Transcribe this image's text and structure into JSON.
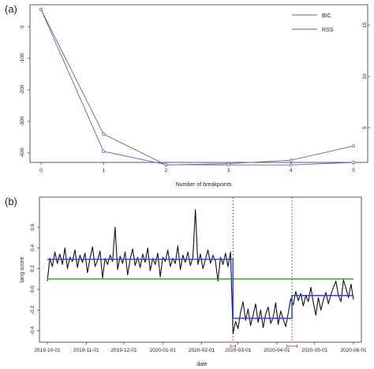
{
  "colors": {
    "bic": "#6a6a6a",
    "rss": "#4f5fd6",
    "series": "#111111",
    "fit": "#2f4fd0",
    "mean": "#2e9c2e",
    "ci": "#d9431f",
    "break": "#444444"
  },
  "chart_data": [
    {
      "type": "line",
      "panel_label": "(a)",
      "xlabel": "Number of breakpoints",
      "x": [
        0,
        1,
        2,
        3,
        4,
        5
      ],
      "x_ticks": [
        "0",
        "1",
        "2",
        "3",
        "4",
        "5"
      ],
      "xlim": [
        0,
        5
      ],
      "ylim_left": [
        -420,
        60
      ],
      "y_ticks_left": [
        "0",
        "-100",
        "-200",
        "-300",
        "-400"
      ],
      "y_ticks_right": [
        "15",
        "10",
        "5"
      ],
      "legend_position": "top-right",
      "series": [
        {
          "name": "BIC",
          "values": [
            55,
            -340,
            -438,
            -434,
            -423,
            -378
          ]
        },
        {
          "name": "RSS",
          "values": [
            55,
            -395,
            -437,
            -438,
            -438,
            -430
          ]
        }
      ]
    },
    {
      "type": "line",
      "panel_label": "(b)",
      "xlabel": "date",
      "ylabel": "lang score",
      "x_ticks": [
        "2019-10-01",
        "2019-11-01",
        "2019-12-01",
        "2020-01-01",
        "2020-02-01",
        "2020-03-01",
        "2020-04-01",
        "2020-05-01",
        "2020-06-01"
      ],
      "y_ticks": [
        "-0.4",
        "-0.2",
        "0.0",
        "0.2",
        "0.4",
        "0.6"
      ],
      "ylim": [
        -0.48,
        0.86
      ],
      "x_day_range": [
        0,
        244
      ],
      "breakpoints_day": [
        148,
        195
      ],
      "breakpoint_ci_day": [
        [
          146,
          150
        ],
        [
          191,
          199
        ]
      ],
      "fitted_segments": [
        {
          "from_day": 0,
          "to_day": 148,
          "value": 0.29
        },
        {
          "from_day": 148,
          "to_day": 195,
          "value": -0.28
        },
        {
          "from_day": 195,
          "to_day": 244,
          "value": -0.06
        }
      ],
      "overall_mean": 0.1,
      "series_day": [
        0,
        2,
        4,
        6,
        8,
        10,
        12,
        14,
        16,
        18,
        20,
        22,
        24,
        26,
        28,
        30,
        32,
        34,
        36,
        38,
        40,
        42,
        44,
        46,
        48,
        50,
        52,
        54,
        56,
        58,
        60,
        62,
        64,
        66,
        68,
        70,
        72,
        74,
        76,
        78,
        80,
        82,
        84,
        86,
        88,
        90,
        92,
        94,
        96,
        98,
        100,
        102,
        104,
        106,
        108,
        110,
        112,
        114,
        116,
        118,
        120,
        122,
        124,
        126,
        128,
        130,
        132,
        134,
        136,
        138,
        140,
        142,
        144,
        146,
        148,
        150,
        152,
        154,
        156,
        158,
        160,
        162,
        164,
        166,
        168,
        170,
        172,
        174,
        176,
        178,
        180,
        182,
        184,
        186,
        188,
        190,
        192,
        194,
        196,
        198,
        200,
        202,
        204,
        206,
        208,
        210,
        212,
        214,
        216,
        218,
        220,
        222,
        224,
        226,
        228,
        230,
        232,
        234,
        236,
        238,
        240,
        242,
        244
      ],
      "series_values": [
        0.08,
        0.3,
        0.22,
        0.36,
        0.25,
        0.34,
        0.24,
        0.4,
        0.2,
        0.31,
        0.27,
        0.38,
        0.21,
        0.33,
        0.26,
        0.35,
        0.16,
        0.3,
        0.41,
        0.22,
        0.28,
        0.37,
        0.11,
        0.3,
        0.24,
        0.33,
        0.27,
        0.6,
        0.19,
        0.32,
        0.25,
        0.36,
        0.14,
        0.29,
        0.39,
        0.23,
        0.31,
        0.21,
        0.34,
        0.26,
        0.4,
        0.18,
        0.3,
        0.24,
        0.35,
        0.12,
        0.31,
        0.27,
        0.38,
        0.22,
        0.3,
        0.25,
        0.42,
        0.19,
        0.33,
        0.26,
        0.36,
        0.23,
        0.31,
        0.77,
        0.24,
        0.34,
        0.2,
        0.29,
        0.38,
        0.25,
        0.33,
        0.27,
        0.08,
        0.31,
        0.24,
        0.35,
        0.22,
        0.36,
        -0.43,
        -0.31,
        -0.38,
        -0.22,
        -0.12,
        -0.3,
        -0.19,
        -0.35,
        -0.25,
        -0.14,
        -0.32,
        -0.2,
        -0.37,
        -0.24,
        -0.17,
        -0.33,
        -0.27,
        -0.13,
        -0.34,
        -0.21,
        -0.29,
        -0.36,
        -0.23,
        -0.09,
        -0.15,
        -0.02,
        -0.11,
        -0.04,
        -0.16,
        -0.06,
        -0.12,
        0.02,
        -0.13,
        -0.25,
        -0.08,
        -0.2,
        -0.1,
        -0.03,
        -0.14,
        -0.05,
        0.02,
        0.08,
        -0.06,
        -0.12,
        0.09,
        0.01,
        -0.08,
        0.05,
        -0.1
      ]
    }
  ]
}
